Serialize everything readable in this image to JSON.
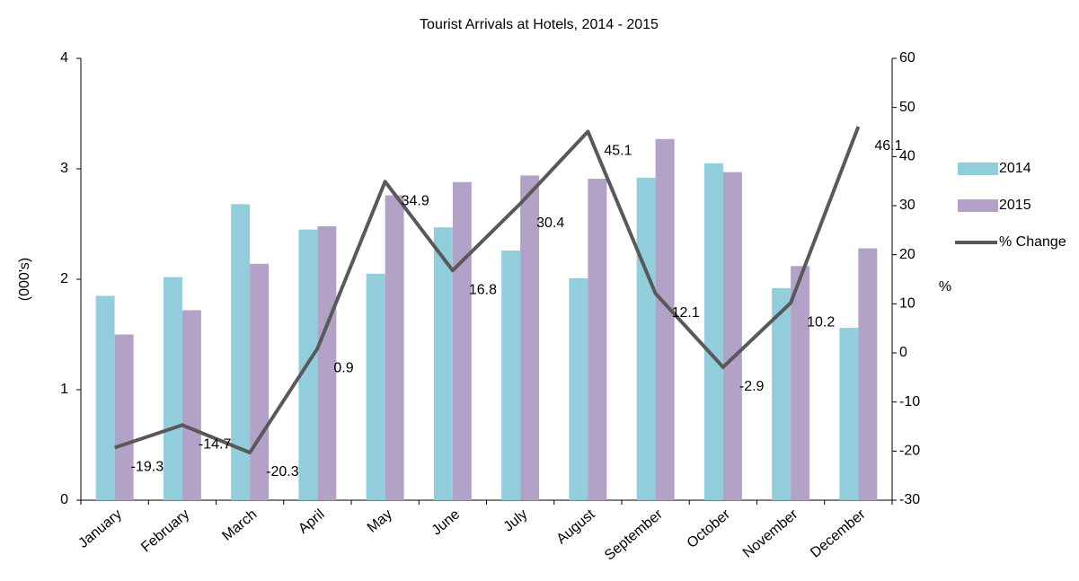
{
  "chart_data": {
    "type": "bar",
    "title": "Tourist Arrivals at Hotels, 2014 - 2015",
    "y_label": "(000's)",
    "y2_label": "%",
    "categories": [
      "January",
      "February",
      "March",
      "April",
      "May",
      "June",
      "July",
      "August",
      "September",
      "October",
      "November",
      "December"
    ],
    "series": [
      {
        "name": "2014",
        "color": "#92cddc",
        "values": [
          1.85,
          2.02,
          2.68,
          2.45,
          2.05,
          2.47,
          2.26,
          2.01,
          2.92,
          3.05,
          1.92,
          1.56
        ]
      },
      {
        "name": "2015",
        "color": "#b3a2c7",
        "values": [
          1.5,
          1.72,
          2.14,
          2.48,
          2.76,
          2.88,
          2.94,
          2.91,
          3.27,
          2.97,
          2.12,
          2.28
        ]
      },
      {
        "name": "% Change",
        "color": "#595959",
        "type": "line",
        "axis": "y2",
        "values": [
          -19.3,
          -14.7,
          -20.3,
          0.9,
          34.9,
          16.8,
          30.4,
          45.1,
          12.1,
          -2.9,
          10.2,
          46.1
        ]
      }
    ],
    "ylim": [
      0,
      4
    ],
    "yticks": [
      0,
      1,
      2,
      3,
      4
    ],
    "y2lim": [
      -30,
      60
    ],
    "y2ticks": [
      -30,
      -20,
      -10,
      0,
      10,
      20,
      30,
      40,
      50,
      60
    ],
    "grid": false,
    "legend": "right"
  }
}
